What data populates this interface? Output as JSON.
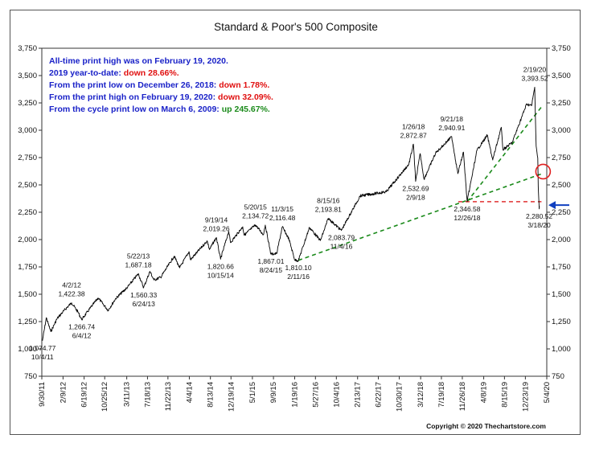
{
  "chart_data": {
    "type": "line",
    "title": "Standard & Poor's 500 Composite",
    "copyright": "Copyright © 2020 Thechartstore.com",
    "ylim": [
      750,
      3750
    ],
    "y_ticks": [
      750,
      1000,
      1250,
      1500,
      1750,
      2000,
      2250,
      2500,
      2750,
      3000,
      3250,
      3500,
      3750
    ],
    "y_tick_labels": [
      "750",
      "1,000",
      "1,250",
      "1,500",
      "1,750",
      "2,000",
      "2,250",
      "2,500",
      "2,750",
      "3,000",
      "3,250",
      "3,500",
      "3,750"
    ],
    "xlim": [
      "2011-09-30",
      "2020-05-04"
    ],
    "x_ticks": [
      "2011-09-30",
      "2012-02-09",
      "2012-06-19",
      "2012-10-25",
      "2013-03-11",
      "2013-07-18",
      "2013-11-22",
      "2014-04-04",
      "2014-08-13",
      "2014-12-19",
      "2015-05-01",
      "2015-09-09",
      "2016-01-19",
      "2016-05-27",
      "2016-10-04",
      "2017-02-13",
      "2017-06-22",
      "2017-10-30",
      "2018-03-12",
      "2018-07-19",
      "2018-11-26",
      "2019-04-08",
      "2019-08-15",
      "2019-12-23",
      "2020-05-04"
    ],
    "x_tick_labels": [
      "9/30/11",
      "2/9/12",
      "6/19/12",
      "10/25/12",
      "3/11/13",
      "7/18/13",
      "11/22/13",
      "4/4/14",
      "8/13/14",
      "12/19/14",
      "5/1/15",
      "9/9/15",
      "1/19/16",
      "5/27/16",
      "10/4/16",
      "2/13/17",
      "6/22/17",
      "10/30/17",
      "3/12/18",
      "7/19/18",
      "11/26/18",
      "4/8/19",
      "8/15/19",
      "12/23/19",
      "5/4/20"
    ],
    "grid": false,
    "series": [
      {
        "color": "#000000",
        "points": [
          [
            "2011-10-04",
            1074.77
          ],
          [
            "2011-10-28",
            1285
          ],
          [
            "2011-11-25",
            1158
          ],
          [
            "2012-01-03",
            1277
          ],
          [
            "2012-02-15",
            1350
          ],
          [
            "2012-04-02",
            1422.38
          ],
          [
            "2012-05-15",
            1330
          ],
          [
            "2012-06-04",
            1266.74
          ],
          [
            "2012-07-10",
            1340
          ],
          [
            "2012-09-14",
            1466
          ],
          [
            "2012-11-15",
            1353
          ],
          [
            "2013-01-02",
            1462
          ],
          [
            "2013-03-15",
            1563
          ],
          [
            "2013-05-22",
            1687.18
          ],
          [
            "2013-06-24",
            1560.33
          ],
          [
            "2013-08-02",
            1709
          ],
          [
            "2013-08-27",
            1630
          ],
          [
            "2013-10-08",
            1655
          ],
          [
            "2013-12-31",
            1848
          ],
          [
            "2014-02-03",
            1741
          ],
          [
            "2014-04-02",
            1890
          ],
          [
            "2014-04-11",
            1815
          ],
          [
            "2014-07-24",
            1988
          ],
          [
            "2014-08-07",
            1909
          ],
          [
            "2014-09-19",
            2019.26
          ],
          [
            "2014-10-15",
            1820.66
          ],
          [
            "2014-12-05",
            2075
          ],
          [
            "2014-12-16",
            1972
          ],
          [
            "2015-03-02",
            2117
          ],
          [
            "2015-03-11",
            2040
          ],
          [
            "2015-05-20",
            2134.72
          ],
          [
            "2015-07-08",
            2044
          ],
          [
            "2015-07-20",
            2132
          ],
          [
            "2015-08-24",
            1867.01
          ],
          [
            "2015-09-29",
            1871
          ],
          [
            "2015-11-03",
            2116.48
          ],
          [
            "2015-12-14",
            2005
          ],
          [
            "2016-01-20",
            1812
          ],
          [
            "2016-02-11",
            1810.1
          ],
          [
            "2016-04-20",
            2111
          ],
          [
            "2016-06-27",
            1991
          ],
          [
            "2016-08-15",
            2193.81
          ],
          [
            "2016-11-04",
            2083.79
          ],
          [
            "2017-03-01",
            2400
          ],
          [
            "2017-08-10",
            2437
          ],
          [
            "2017-12-29",
            2690
          ],
          [
            "2018-01-26",
            2872.87
          ],
          [
            "2018-02-09",
            2532.69
          ],
          [
            "2018-03-09",
            2786
          ],
          [
            "2018-04-02",
            2553
          ],
          [
            "2018-06-13",
            2791
          ],
          [
            "2018-09-21",
            2940.91
          ],
          [
            "2018-10-29",
            2603
          ],
          [
            "2018-12-03",
            2800
          ],
          [
            "2018-12-26",
            2346.58
          ],
          [
            "2019-02-25",
            2816
          ],
          [
            "2019-04-30",
            2954
          ],
          [
            "2019-06-03",
            2728
          ],
          [
            "2019-07-26",
            3027
          ],
          [
            "2019-08-05",
            2822
          ],
          [
            "2019-10-02",
            2887
          ],
          [
            "2019-12-31",
            3240
          ],
          [
            "2020-01-31",
            3225
          ],
          [
            "2020-02-19",
            3393.52
          ],
          [
            "2020-02-28",
            2855
          ],
          [
            "2020-03-09",
            2746
          ],
          [
            "2020-03-12",
            2480
          ],
          [
            "2020-03-18",
            2280.52
          ],
          [
            "2020-03-20",
            2305
          ]
        ]
      }
    ],
    "annotations": [
      {
        "date": "2011-10-04",
        "value": 1074.77,
        "label_value": "1,074.77",
        "label_date": "10/4/11"
      },
      {
        "date": "2012-04-02",
        "value": 1422.38,
        "label_date": "4/2/12",
        "label_value": "1,422.38"
      },
      {
        "date": "2012-06-04",
        "value": 1266.74,
        "label_value": "1,266.74",
        "label_date": "6/4/12"
      },
      {
        "date": "2013-05-22",
        "value": 1687.18,
        "label_date": "5/22/13",
        "label_value": "1,687.18"
      },
      {
        "date": "2013-06-24",
        "value": 1560.33,
        "label_value": "1,560.33",
        "label_date": "6/24/13"
      },
      {
        "date": "2014-09-19",
        "value": 2019.26,
        "label_date": "9/19/14",
        "label_value": "2,019.26"
      },
      {
        "date": "2014-10-15",
        "value": 1820.66,
        "label_value": "1,820.66",
        "label_date": "10/15/14"
      },
      {
        "date": "2015-05-20",
        "value": 2134.72,
        "label_date": "5/20/15",
        "label_value": "2,134.72"
      },
      {
        "date": "2015-08-24",
        "value": 1867.01,
        "label_value": "1,867.01",
        "label_date": "8/24/15"
      },
      {
        "date": "2015-11-03",
        "value": 2116.48,
        "label_date": "11/3/15",
        "label_value": "2,116.48"
      },
      {
        "date": "2016-02-11",
        "value": 1810.1,
        "label_value": "1,810.10",
        "label_date": "2/11/16"
      },
      {
        "date": "2016-08-15",
        "value": 2193.81,
        "label_date": "8/15/16",
        "label_value": "2,193.81"
      },
      {
        "date": "2016-11-04",
        "value": 2083.79,
        "label_value": "2,083.79",
        "label_date": "11/4/16"
      },
      {
        "date": "2018-01-26",
        "value": 2872.87,
        "label_date": "1/26/18",
        "label_value": "2,872.87"
      },
      {
        "date": "2018-02-09",
        "value": 2532.69,
        "label_value": "2,532.69",
        "label_date": "2/9/18"
      },
      {
        "date": "2018-09-21",
        "value": 2940.91,
        "label_date": "9/21/18",
        "label_value": "2,940.91"
      },
      {
        "date": "2018-12-26",
        "value": 2346.58,
        "label_value": "2,346.58",
        "label_date": "12/26/18"
      },
      {
        "date": "2020-02-19",
        "value": 3393.52,
        "label_date": "2/19/20",
        "label_value": "3,393.52"
      },
      {
        "date": "2020-03-18",
        "value": 2280.52,
        "label_value": "2,280.52",
        "label_date": "3/18/20"
      }
    ],
    "trendlines": [
      {
        "color": "#1a8a1a",
        "style": "dashed",
        "points": [
          [
            "2016-02-11",
            1810.1
          ],
          [
            "2020-03-31",
            2600
          ]
        ]
      },
      {
        "color": "#1a8a1a",
        "style": "dashed",
        "points": [
          [
            "2018-12-26",
            2346.58
          ],
          [
            "2020-04-10",
            3230
          ]
        ]
      },
      {
        "color": "#e03030",
        "style": "dashed",
        "points": [
          [
            "2018-11-01",
            2346.58
          ],
          [
            "2020-04-01",
            2346.58
          ]
        ]
      }
    ],
    "highlight_circle": {
      "date": "2020-03-12",
      "value": 2600,
      "color": "#e02020"
    },
    "pointer_arrow": {
      "value": 2315,
      "color": "#1040c0"
    },
    "info_lines": [
      [
        {
          "text": "All-time print high was on February 19, 2020.",
          "color": "#1a22c8"
        }
      ],
      [
        {
          "text": "2019 year-to-date:  ",
          "color": "#1a22c8"
        },
        {
          "text": "down 28.66%.",
          "color": "#e01010"
        }
      ],
      [
        {
          "text": "From the print low on December 26, 2018:  ",
          "color": "#1a22c8"
        },
        {
          "text": "down 1.78%.",
          "color": "#e01010"
        }
      ],
      [
        {
          "text": "From the print high on February 19, 2020:  ",
          "color": "#1a22c8"
        },
        {
          "text": "down 32.09%.",
          "color": "#e01010"
        }
      ],
      [
        {
          "text": "From the cycle print low on March 6, 2009:  ",
          "color": "#1a22c8"
        },
        {
          "text": "up 245.67%.",
          "color": "#1a8a1a"
        }
      ]
    ]
  }
}
